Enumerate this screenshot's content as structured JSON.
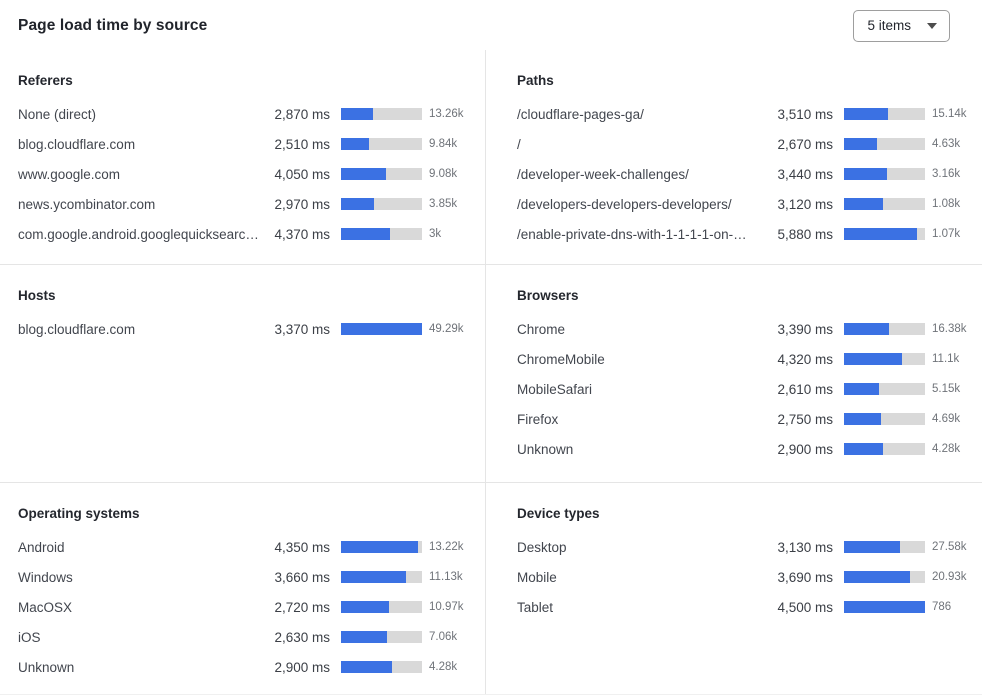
{
  "header": {
    "title": "Page load time by source",
    "items_selector": {
      "label": "5 items"
    }
  },
  "colors": {
    "bar_fill": "#3B71E3",
    "bar_track": "#D9D9D9",
    "divider": "#E5E5E5"
  },
  "chart_data": {
    "type": "bar",
    "title": "Page load time by source",
    "unit": "ms",
    "orientation": "horizontal",
    "panels": [
      {
        "title": "Referers",
        "bar_scale_max": 7300,
        "rows": [
          {
            "label": "None (direct)",
            "value": 2870,
            "value_label": "2,870 ms",
            "count": "13.26k"
          },
          {
            "label": "blog.cloudflare.com",
            "value": 2510,
            "value_label": "2,510 ms",
            "count": "9.84k"
          },
          {
            "label": "www.google.com",
            "value": 4050,
            "value_label": "4,050 ms",
            "count": "9.08k"
          },
          {
            "label": "news.ycombinator.com",
            "value": 2970,
            "value_label": "2,970 ms",
            "count": "3.85k"
          },
          {
            "label": "com.google.android.googlequicksearc…",
            "value": 4370,
            "value_label": "4,370 ms",
            "count": "3k"
          }
        ]
      },
      {
        "title": "Paths",
        "bar_scale_max": 6530,
        "rows": [
          {
            "label": "/cloudflare-pages-ga/",
            "value": 3510,
            "value_label": "3,510 ms",
            "count": "15.14k"
          },
          {
            "label": "/",
            "value": 2670,
            "value_label": "2,670 ms",
            "count": "4.63k"
          },
          {
            "label": "/developer-week-challenges/",
            "value": 3440,
            "value_label": "3,440 ms",
            "count": "3.16k"
          },
          {
            "label": "/developers-developers-developers/",
            "value": 3120,
            "value_label": "3,120 ms",
            "count": "1.08k"
          },
          {
            "label": "/enable-private-dns-with-1-1-1-1-on-…",
            "value": 5880,
            "value_label": "5,880 ms",
            "count": "1.07k"
          }
        ]
      },
      {
        "title": "Hosts",
        "bar_scale_max": 3370,
        "rows": [
          {
            "label": "blog.cloudflare.com",
            "value": 3370,
            "value_label": "3,370 ms",
            "count": "49.29k"
          }
        ]
      },
      {
        "title": "Browsers",
        "bar_scale_max": 6060,
        "rows": [
          {
            "label": "Chrome",
            "value": 3390,
            "value_label": "3,390 ms",
            "count": "16.38k"
          },
          {
            "label": "ChromeMobile",
            "value": 4320,
            "value_label": "4,320 ms",
            "count": "11.1k"
          },
          {
            "label": "MobileSafari",
            "value": 2610,
            "value_label": "2,610 ms",
            "count": "5.15k"
          },
          {
            "label": "Firefox",
            "value": 2750,
            "value_label": "2,750 ms",
            "count": "4.69k"
          },
          {
            "label": "Unknown",
            "value": 2900,
            "value_label": "2,900 ms",
            "count": "4.28k"
          }
        ]
      },
      {
        "title": "Operating systems",
        "bar_scale_max": 4580,
        "rows": [
          {
            "label": "Android",
            "value": 4350,
            "value_label": "4,350 ms",
            "count": "13.22k"
          },
          {
            "label": "Windows",
            "value": 3660,
            "value_label": "3,660 ms",
            "count": "11.13k"
          },
          {
            "label": "MacOSX",
            "value": 2720,
            "value_label": "2,720 ms",
            "count": "10.97k"
          },
          {
            "label": "iOS",
            "value": 2630,
            "value_label": "2,630 ms",
            "count": "7.06k"
          },
          {
            "label": "Unknown",
            "value": 2900,
            "value_label": "2,900 ms",
            "count": "4.28k"
          }
        ]
      },
      {
        "title": "Device types",
        "bar_scale_max": 4500,
        "rows": [
          {
            "label": "Desktop",
            "value": 3130,
            "value_label": "3,130 ms",
            "count": "27.58k"
          },
          {
            "label": "Mobile",
            "value": 3690,
            "value_label": "3,690 ms",
            "count": "20.93k"
          },
          {
            "label": "Tablet",
            "value": 4500,
            "value_label": "4,500 ms",
            "count": "786"
          }
        ]
      }
    ]
  }
}
